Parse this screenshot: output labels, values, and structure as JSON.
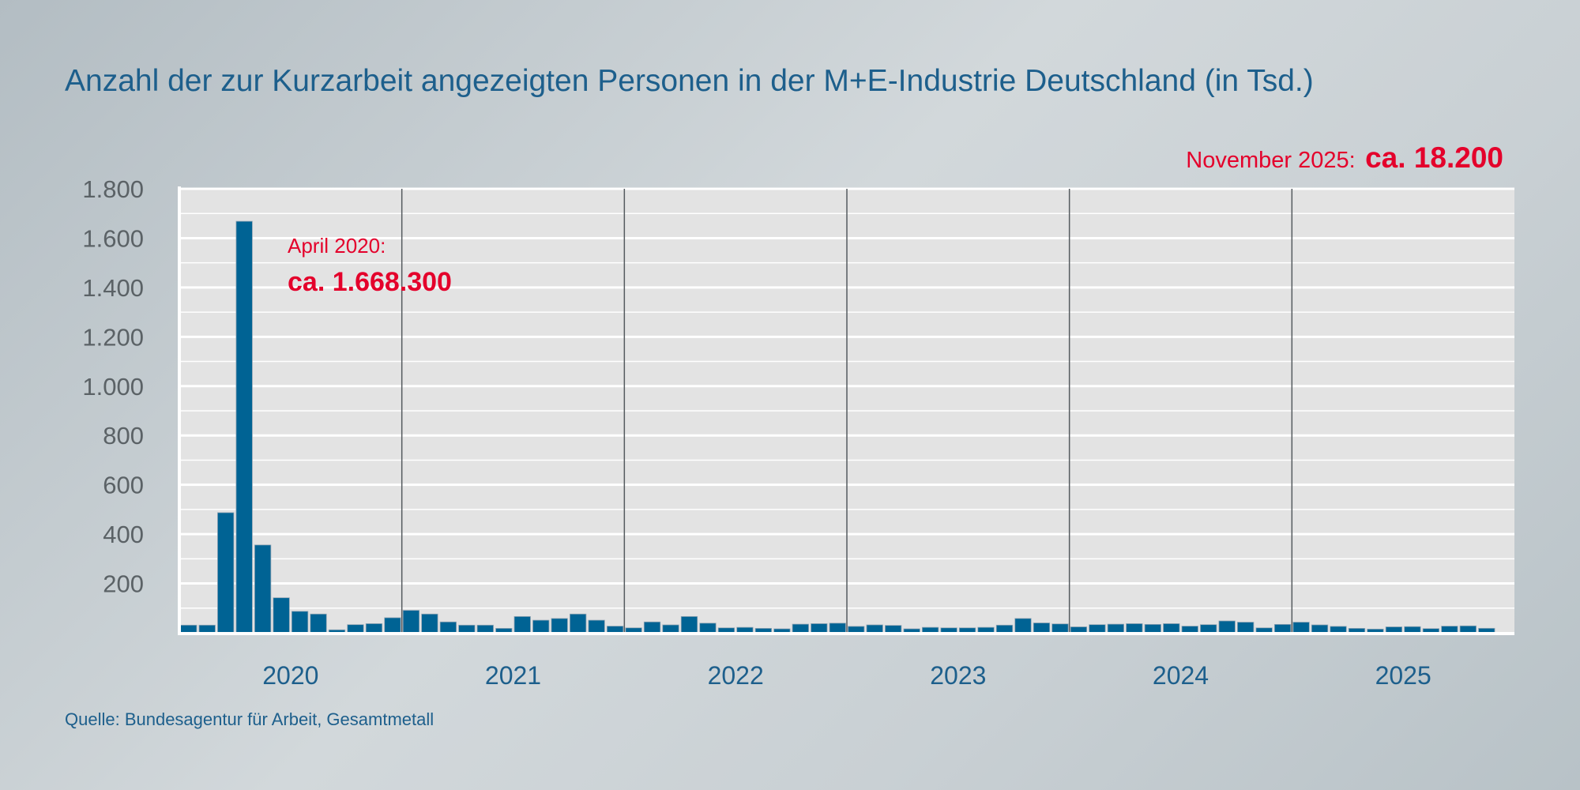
{
  "chart_data": {
    "type": "bar",
    "title": "Anzahl der zur Kurzarbeit angezeigten Personen in der M+E-Industrie Deutschland (in Tsd.)",
    "xlabel": "",
    "ylabel": "",
    "ylim": [
      0,
      1800
    ],
    "yticks": [
      "200",
      "400",
      "600",
      "800",
      "1.000",
      "1.200",
      "1.400",
      "1.600",
      "1.800"
    ],
    "ytick_values": [
      200,
      400,
      600,
      800,
      1000,
      1200,
      1400,
      1600,
      1800
    ],
    "grid": true,
    "years": [
      "2020",
      "2021",
      "2022",
      "2023",
      "2024",
      "2025"
    ],
    "x_start": "2020-01",
    "x_end": "2025-11",
    "values": [
      31,
      31,
      487,
      1668.3,
      356,
      142,
      87,
      76,
      12,
      33,
      37,
      61,
      91,
      76,
      44,
      31,
      31,
      18,
      66,
      51,
      58,
      76,
      51,
      27,
      20,
      44,
      32,
      66,
      39,
      20,
      22,
      18,
      16,
      35,
      37,
      39,
      26,
      32,
      30,
      16,
      22,
      20,
      20,
      22,
      31,
      58,
      40,
      36,
      24,
      33,
      35,
      37,
      34,
      37,
      27,
      33,
      48,
      43,
      20,
      34,
      43,
      32,
      26,
      18,
      15,
      24,
      25,
      17,
      27,
      28,
      18.2
    ],
    "bar_color": "#006394",
    "annotations": {
      "peak_label": "April 2020:",
      "peak_value": "ca. 1.668.300",
      "latest_label": "November 2025:",
      "latest_value": "ca. 18.200",
      "color": "#e4002b"
    },
    "source": "Quelle: Bundesagentur für Arbeit, Gesamtmetall"
  }
}
